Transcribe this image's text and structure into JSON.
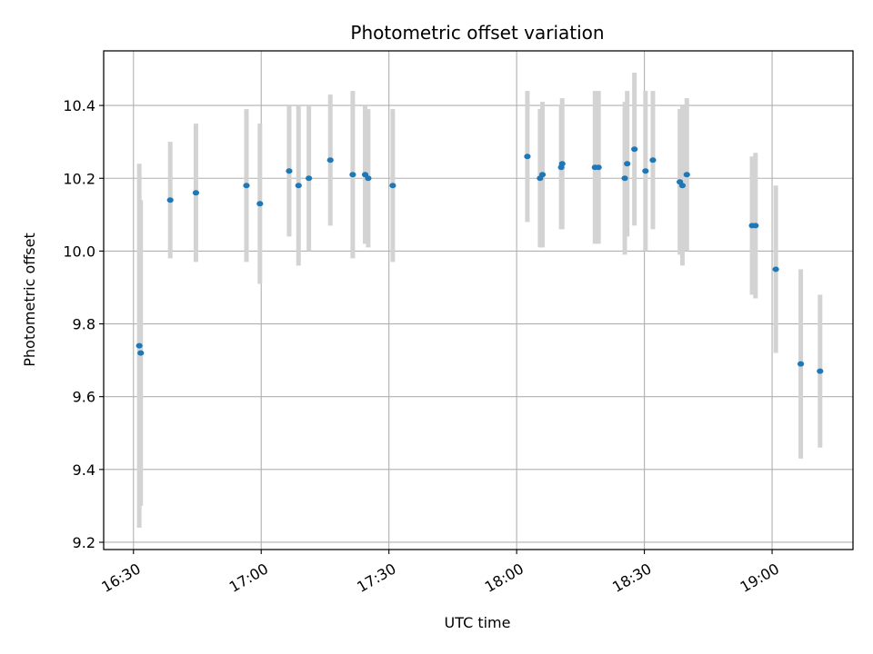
{
  "chart_data": {
    "type": "scatter",
    "title": "Photometric offset variation",
    "xlabel": "UTC time",
    "ylabel": "Photometric offset",
    "x_range": [
      "16:23",
      "19:19"
    ],
    "ylim": [
      9.18,
      10.55
    ],
    "x_ticks": [
      "16:30",
      "17:00",
      "17:30",
      "18:00",
      "18:30",
      "19:00"
    ],
    "y_ticks": [
      9.2,
      9.4,
      9.6,
      9.8,
      10.0,
      10.2,
      10.4
    ],
    "y_tick_labels": [
      "9.2",
      "9.4",
      "9.6",
      "9.8",
      "10.0",
      "10.2",
      "10.4"
    ],
    "grid": true,
    "point_color": "#1f77b4",
    "errorbar_color": "#d3d3d3",
    "points": [
      {
        "x": "16:31:22",
        "y": 9.74,
        "yerr": 0.5
      },
      {
        "x": "16:31:42",
        "y": 9.72,
        "yerr": 0.42
      },
      {
        "x": "16:38:38",
        "y": 10.14,
        "yerr": 0.16
      },
      {
        "x": "16:44:40",
        "y": 10.16,
        "yerr": 0.19
      },
      {
        "x": "16:56:32",
        "y": 10.18,
        "yerr": 0.21
      },
      {
        "x": "16:59:42",
        "y": 10.13,
        "yerr": 0.22
      },
      {
        "x": "17:06:34",
        "y": 10.22,
        "yerr": 0.18
      },
      {
        "x": "17:08:46",
        "y": 10.18,
        "yerr": 0.22
      },
      {
        "x": "17:11:12",
        "y": 10.2,
        "yerr": 0.2
      },
      {
        "x": "17:16:14",
        "y": 10.25,
        "yerr": 0.18
      },
      {
        "x": "17:21:30",
        "y": 10.21,
        "yerr": 0.23
      },
      {
        "x": "17:24:25",
        "y": 10.21,
        "yerr": 0.19
      },
      {
        "x": "17:25:08",
        "y": 10.2,
        "yerr": 0.19
      },
      {
        "x": "17:30:54",
        "y": 10.18,
        "yerr": 0.21
      },
      {
        "x": "18:02:31",
        "y": 10.26,
        "yerr": 0.18
      },
      {
        "x": "18:05:30",
        "y": 10.2,
        "yerr": 0.19
      },
      {
        "x": "18:06:04",
        "y": 10.21,
        "yerr": 0.2
      },
      {
        "x": "18:10:28",
        "y": 10.23,
        "yerr": 0.17
      },
      {
        "x": "18:10:42",
        "y": 10.24,
        "yerr": 0.18
      },
      {
        "x": "18:18:24",
        "y": 10.23,
        "yerr": 0.21
      },
      {
        "x": "18:19:14",
        "y": 10.23,
        "yerr": 0.21
      },
      {
        "x": "18:25:24",
        "y": 10.2,
        "yerr": 0.21
      },
      {
        "x": "18:25:58",
        "y": 10.24,
        "yerr": 0.2
      },
      {
        "x": "18:27:40",
        "y": 10.28,
        "yerr": 0.21
      },
      {
        "x": "18:30:16",
        "y": 10.22,
        "yerr": 0.22
      },
      {
        "x": "18:32:00",
        "y": 10.25,
        "yerr": 0.19
      },
      {
        "x": "18:38:20",
        "y": 10.19,
        "yerr": 0.2
      },
      {
        "x": "18:38:56",
        "y": 10.18,
        "yerr": 0.22
      },
      {
        "x": "18:39:58",
        "y": 10.21,
        "yerr": 0.21
      },
      {
        "x": "18:55:18",
        "y": 10.07,
        "yerr": 0.19
      },
      {
        "x": "18:56:06",
        "y": 10.07,
        "yerr": 0.2
      },
      {
        "x": "19:00:52",
        "y": 9.95,
        "yerr": 0.23
      },
      {
        "x": "19:06:44",
        "y": 9.69,
        "yerr": 0.26
      },
      {
        "x": "19:11:16",
        "y": 9.67,
        "yerr": 0.21
      }
    ]
  }
}
